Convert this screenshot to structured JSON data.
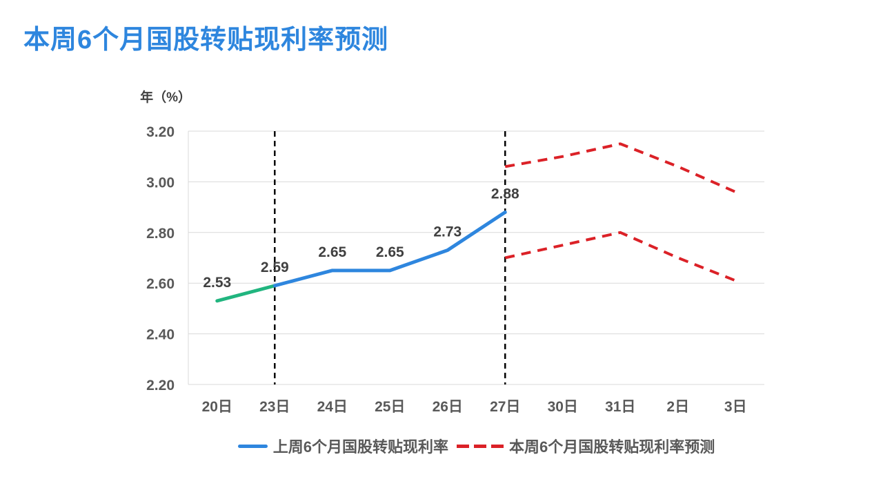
{
  "title": "本周6个月国股转贴现利率预测",
  "colors": {
    "title": "#2E86DE",
    "actual_line": "#2E86DE",
    "actual_first_segment": "#21B57F",
    "forecast_line": "#DB2127",
    "grid": "#D9D9D9",
    "axis_text": "#595959",
    "data_label": "#404040",
    "divider": "#000000",
    "background": "#FFFFFF"
  },
  "legend": {
    "items": [
      {
        "label": "上周6个月国股转贴现利率",
        "swatch": "blue-solid-line"
      },
      {
        "label": "本周6个月国股转贴现利率预测",
        "swatch": "red-dashed-line"
      }
    ]
  },
  "chart_data": {
    "type": "line",
    "title": "本周6个月国股转贴现利率预测",
    "categories": [
      "20日",
      "23日",
      "24日",
      "25日",
      "26日",
      "27日",
      "30日",
      "31日",
      "2日",
      "3日"
    ],
    "xlabel": "",
    "ylabel": "年（%）",
    "ylim": [
      2.2,
      3.2
    ],
    "ytick_labels": [
      "3.20",
      "3.00",
      "2.80",
      "2.60",
      "2.40",
      "2.20"
    ],
    "grid": "horizontal-only",
    "legend_position": "bottom",
    "divider_categories": [
      "23日",
      "27日"
    ],
    "series": [
      {
        "name": "上周6个月国股转贴现利率",
        "line_style": "solid",
        "x_indices": [
          0,
          1,
          2,
          3,
          4,
          5
        ],
        "values": [
          2.53,
          2.59,
          2.65,
          2.65,
          2.73,
          2.88
        ],
        "point_labels": [
          "2.53",
          "2.59",
          "2.65",
          "2.65",
          "2.73",
          "2.88"
        ],
        "first_segment_green": true
      },
      {
        "name": "本周6个月国股转贴现利率预测（上界）",
        "line_style": "dashed",
        "x_indices": [
          5,
          6,
          7,
          8,
          9
        ],
        "values": [
          3.06,
          3.1,
          3.15,
          3.06,
          2.96
        ]
      },
      {
        "name": "本周6个月国股转贴现利率预测（下界）",
        "line_style": "dashed",
        "x_indices": [
          5,
          6,
          7,
          8,
          9
        ],
        "values": [
          2.7,
          2.75,
          2.8,
          2.7,
          2.61
        ]
      }
    ]
  }
}
